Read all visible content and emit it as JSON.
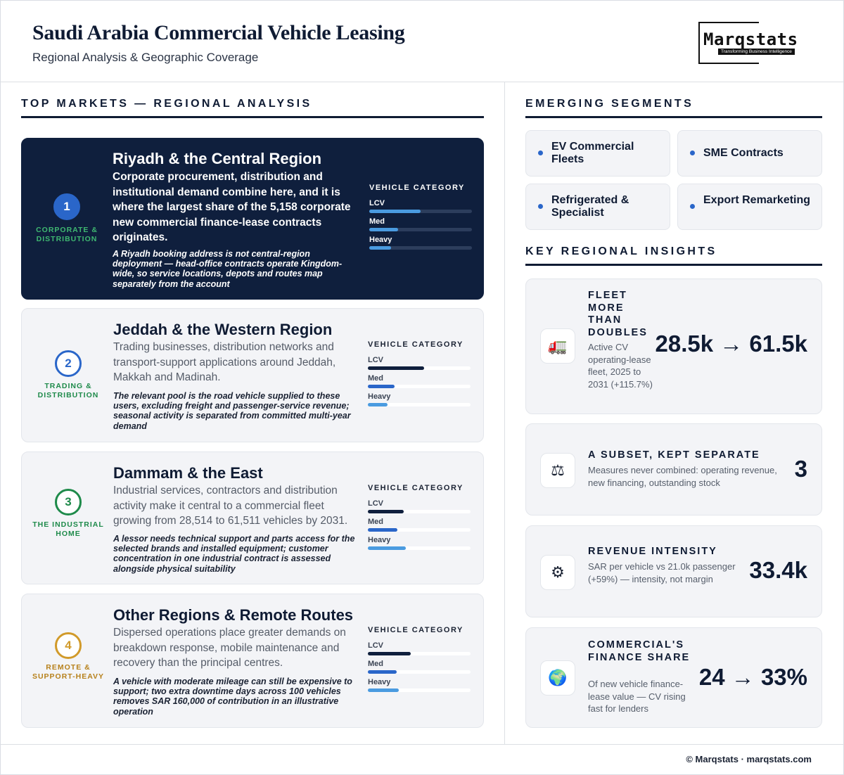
{
  "header": {
    "title": "Saudi Arabia Commercial Vehicle Leasing",
    "subtitle": "Regional Analysis & Geographic Coverage",
    "logo_word": "Marqstats",
    "logo_tagline": "Transforming Business Intelligence"
  },
  "left_section": {
    "heading": "TOP MARKETS — REGIONAL ANALYSIS",
    "vehicle_category_label": "VEHICLE CATEGORY",
    "cards": [
      {
        "number": "1",
        "badge": "CORPORATE & DISTRIBUTION",
        "title": "Riyadh & the Central Region",
        "body": "Corporate procurement, distribution and institutional demand combine here, and it is where the largest share of the 5,158 corporate new commercial finance-lease contracts originates.",
        "note": "A Riyadh booking address is not central-region deployment — head-office contracts operate Kingdom-wide, so service locations, depots and routes map separately from the account",
        "bars": [
          {
            "label": "LCV",
            "level": 0.5
          },
          {
            "label": "Med",
            "level": 0.28
          },
          {
            "label": "Heavy",
            "level": 0.21
          }
        ]
      },
      {
        "number": "2",
        "badge": "TRADING & DISTRIBUTION",
        "title": "Jeddah & the Western Region",
        "body": "Trading businesses, distribution networks and transport-support applications around Jeddah, Makkah and Madinah.",
        "note": "The relevant pool is the road vehicle supplied to these users, excluding freight and passenger-service revenue; seasonal activity is separated from committed multi-year demand",
        "bars": [
          {
            "label": "LCV",
            "level": 0.55
          },
          {
            "label": "Med",
            "level": 0.26
          },
          {
            "label": "Heavy",
            "level": 0.19
          }
        ]
      },
      {
        "number": "3",
        "badge": "THE INDUSTRIAL HOME",
        "title": "Dammam & the East",
        "body": "Industrial services, contractors and distribution activity make it central to a commercial fleet growing from 28,514 to 61,511 vehicles by 2031.",
        "note": "A lessor needs technical support and parts access for the selected brands and installed equipment; customer concentration in one industrial contract is assessed alongside physical suitability",
        "bars": [
          {
            "label": "LCV",
            "level": 0.35
          },
          {
            "label": "Med",
            "level": 0.29
          },
          {
            "label": "Heavy",
            "level": 0.37
          }
        ]
      },
      {
        "number": "4",
        "badge": "REMOTE & SUPPORT-HEAVY",
        "title": "Other Regions & Remote Routes",
        "body": "Dispersed operations place greater demands on breakdown response, mobile maintenance and recovery than the principal centres.",
        "note": "A vehicle with moderate mileage can still be expensive to support; two extra downtime days across 100 vehicles removes SAR 160,000 of contribution in an illustrative operation",
        "bars": [
          {
            "label": "LCV",
            "level": 0.42
          },
          {
            "label": "Med",
            "level": 0.28
          },
          {
            "label": "Heavy",
            "level": 0.3
          }
        ]
      }
    ]
  },
  "right_section": {
    "segments_heading": "EMERGING SEGMENTS",
    "segments": [
      {
        "label": "EV Commercial Fleets"
      },
      {
        "label": "SME Contracts"
      },
      {
        "label": "Refrigerated & Specialist"
      },
      {
        "label": "Export Remarketing"
      }
    ],
    "insights_heading": "KEY REGIONAL INSIGHTS",
    "insights": [
      {
        "icon": "truck-icon",
        "glyph": "🚛",
        "title": "FLEET MORE THAN DOUBLES",
        "desc": "Active CV operating-lease fleet, 2025 to 2031 (+115.7%)",
        "value": "28.5k → 61.5k"
      },
      {
        "icon": "scales-icon",
        "glyph": "⚖",
        "title": "A SUBSET, KEPT SEPARATE",
        "desc": "Measures never combined: operating revenue, new financing, outstanding stock",
        "value": "3"
      },
      {
        "icon": "gear-icon",
        "glyph": "⚙",
        "title": "REVENUE INTENSITY",
        "desc": "SAR per vehicle vs 21.0k passenger (+59%) — intensity, not margin",
        "value": "33.4k"
      },
      {
        "icon": "globe-icon",
        "glyph": "🌍",
        "title": "COMMERCIAL'S FINANCE SHARE",
        "desc": "Of new vehicle finance-lease value — CV rising fast for lenders",
        "value": "24 → 33%"
      }
    ]
  },
  "footer": {
    "text": "© Marqstats · marqstats.com"
  },
  "colors": {
    "navy": "#0f1f3d",
    "accent_blue": "#2a66c9",
    "light_blue": "#4a9be0",
    "green": "#1e8a4a",
    "amber": "#d19a2a"
  }
}
